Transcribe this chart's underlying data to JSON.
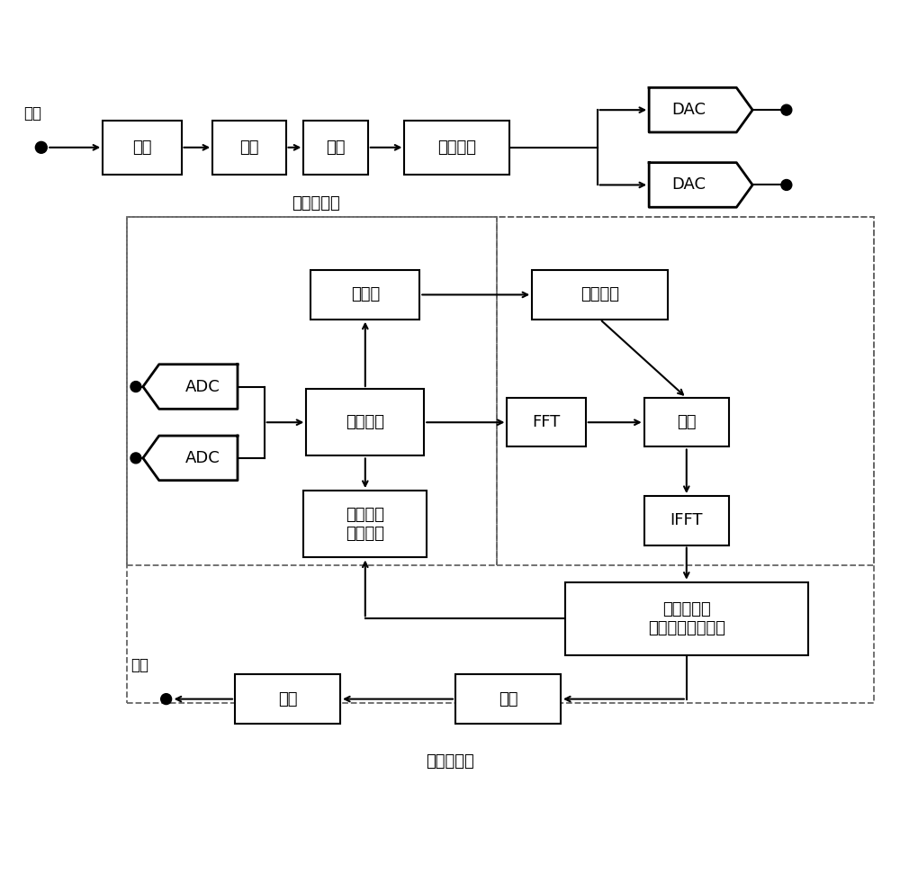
{
  "bg_color": "#ffffff",
  "line_color": "#000000",
  "font_size_main": 13,
  "font_size_label": 12,
  "transmitter_label": "（发射机）",
  "receiver_label": "（接收机）",
  "input_label": "输入",
  "output_label": "输出",
  "tx_blocks": [
    "编码",
    "调制",
    "组帧",
    "成形滤波"
  ],
  "dac_label": "DAC",
  "adc_label": "ADC",
  "frame_sync": "帧同步",
  "channel_est": "信道估计",
  "timing_sync": "定时同步",
  "fft": "FFT",
  "equalize": "均衡",
  "ifft": "IFFT",
  "carrier": "载波同步、\n相位噪声补偿抑制",
  "sample_timing": "采样定时\n偏差估计",
  "demod": "解调",
  "decode": "译码"
}
